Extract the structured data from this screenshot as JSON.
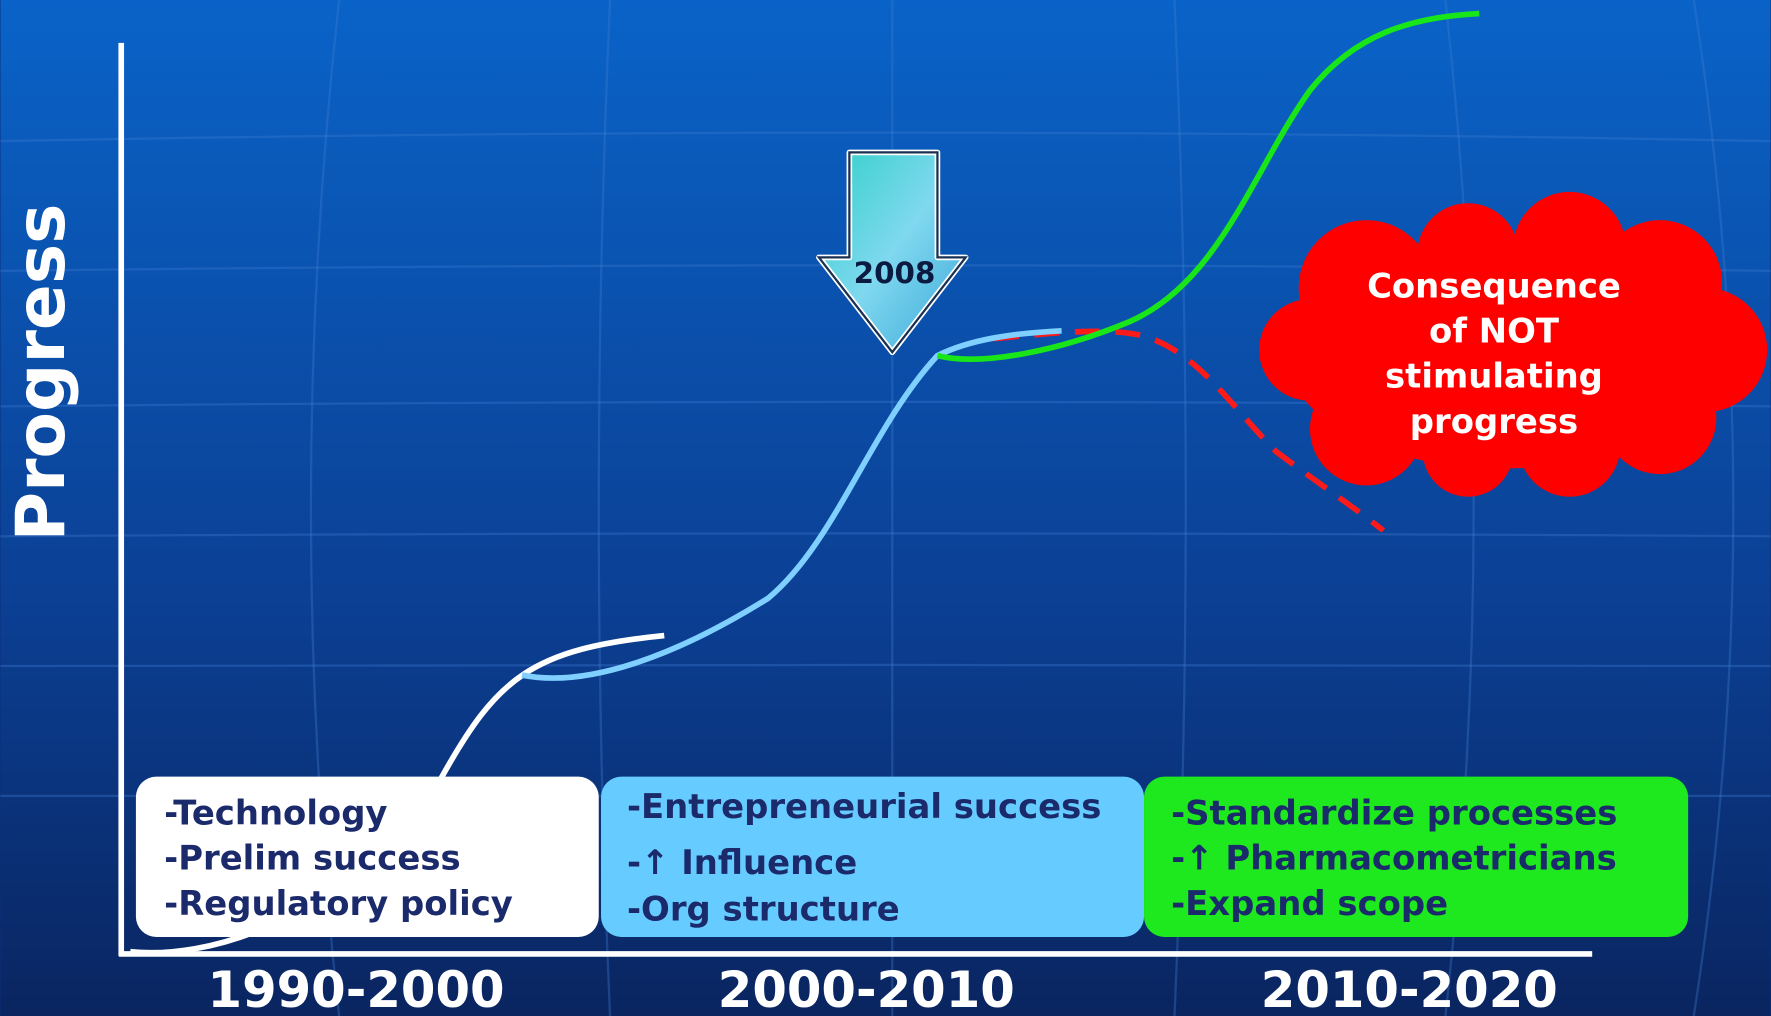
{
  "y_axis_label": "Progress",
  "marker": {
    "label": "2008"
  },
  "periods": [
    "1990-2000",
    "2000-2010",
    "2010-2020"
  ],
  "boxes": [
    {
      "items": [
        "-Technology",
        "-Prelim success",
        "-Regulatory policy"
      ]
    },
    {
      "items": [
        "-Entrepreneurial success",
        "-↑ Influence",
        "-Org structure"
      ]
    },
    {
      "items": [
        "-Standardize processes",
        "-↑ Pharmacometricians",
        "-Expand scope"
      ]
    }
  ],
  "cloud": {
    "lines": [
      "Consequence",
      "of NOT",
      "stimulating",
      "progress"
    ]
  }
}
